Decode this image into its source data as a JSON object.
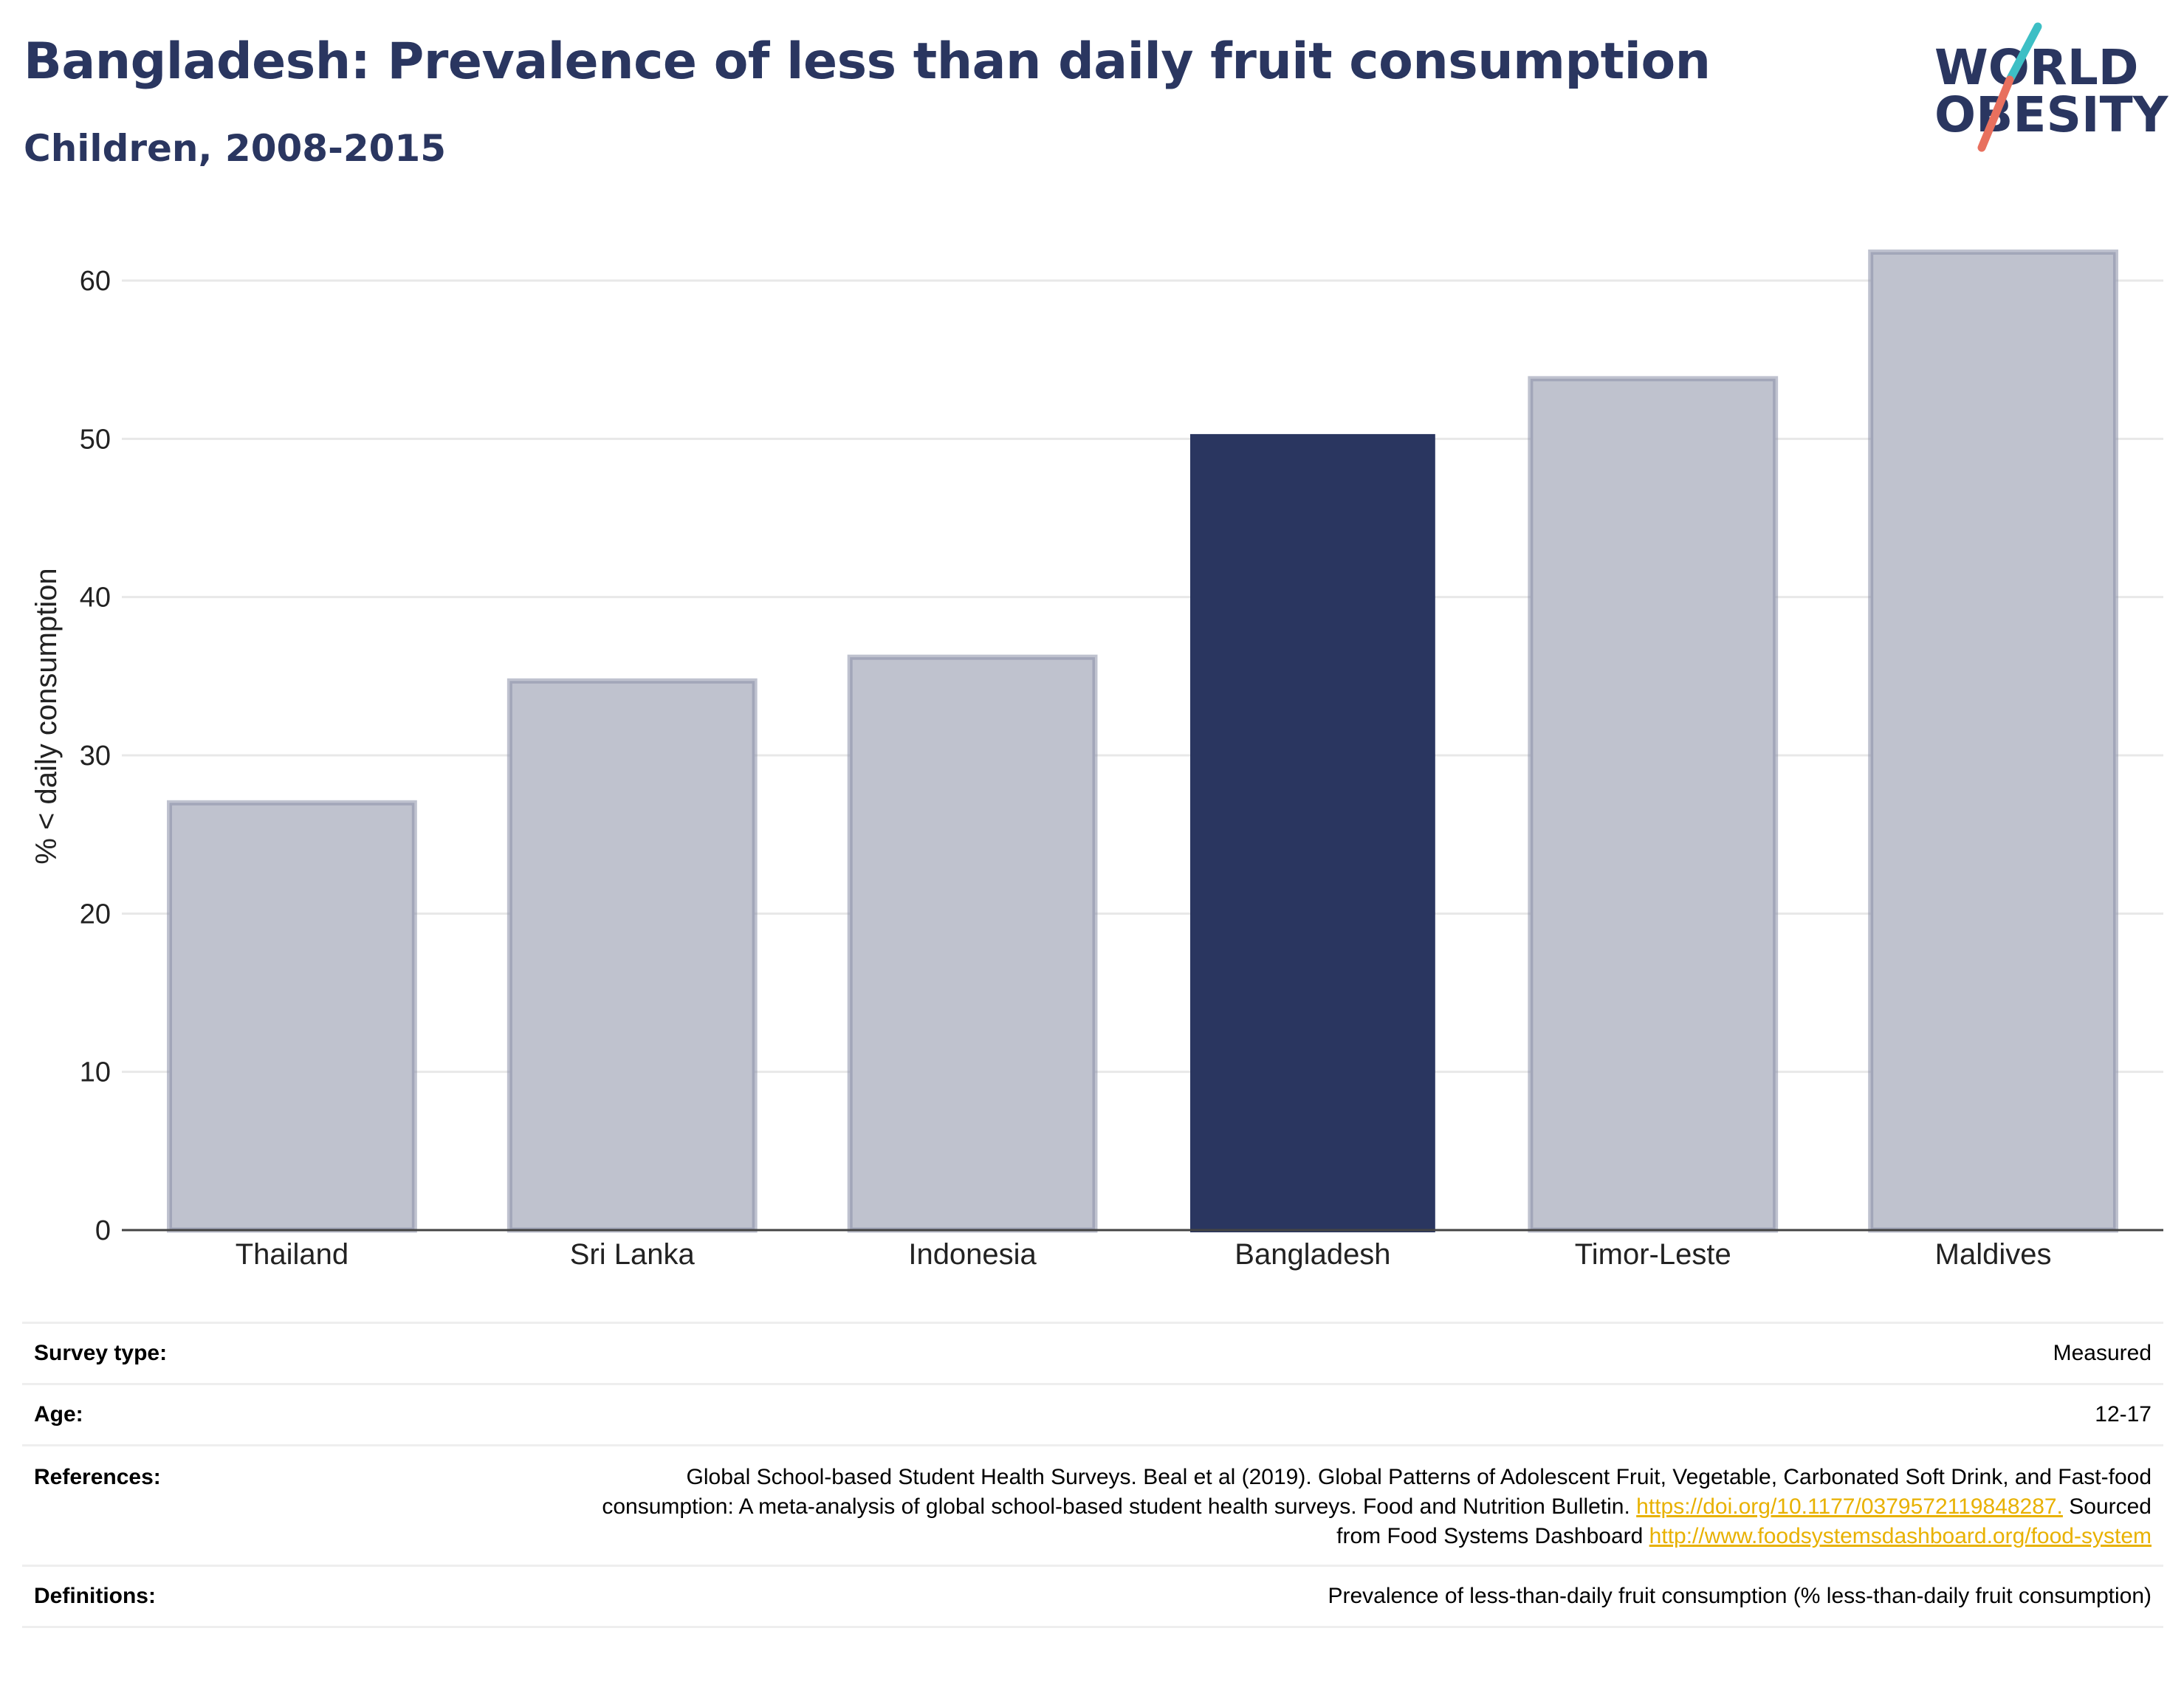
{
  "header": {
    "title": "Bangladesh: Prevalence of less than daily fruit consumption",
    "subtitle": "Children, 2008-2015"
  },
  "logo": {
    "line1": "WORLD",
    "line2": "OBESITY",
    "colors": {
      "text": "#2a3660",
      "slash_teal": "#3dbfc5",
      "slash_coral": "#e8705e"
    }
  },
  "chart_data": {
    "type": "bar",
    "categories": [
      "Thailand",
      "Sri Lanka",
      "Indonesia",
      "Bangladesh",
      "Timor-Leste",
      "Maldives"
    ],
    "values": [
      27.0,
      34.7,
      36.2,
      50.3,
      53.8,
      61.8
    ],
    "highlight": "Bangladesh",
    "ylabel": "% < daily consumption",
    "ylim": [
      0,
      65
    ],
    "yticks": [
      0,
      10,
      20,
      30,
      40,
      50,
      60
    ],
    "grid": true,
    "legend": "none",
    "colors": {
      "highlight": "#2a3660",
      "other": "#bfc2ce",
      "other_border": "#8a90a8"
    }
  },
  "meta": {
    "survey_type": {
      "label": "Survey type:",
      "value": "Measured"
    },
    "age": {
      "label": "Age:",
      "value": "12-17"
    },
    "references": {
      "label": "References:",
      "text1": "Global School-based Student Health Surveys. Beal et al (2019). Global Patterns of Adolescent Fruit, Vegetable, Carbonated Soft Drink, and Fast-food consumption: A meta-analysis of global school-based student health surveys. Food and Nutrition Bulletin.",
      "link1": "https://doi.org/10.1177/0379572119848287.",
      "text2": "Sourced from Food Systems Dashboard",
      "link2": "http://www.foodsystemsdashboard.org/food-system"
    },
    "definitions": {
      "label": "Definitions:",
      "value": "Prevalence of less-than-daily fruit consumption (% less-than-daily fruit consumption)"
    }
  }
}
